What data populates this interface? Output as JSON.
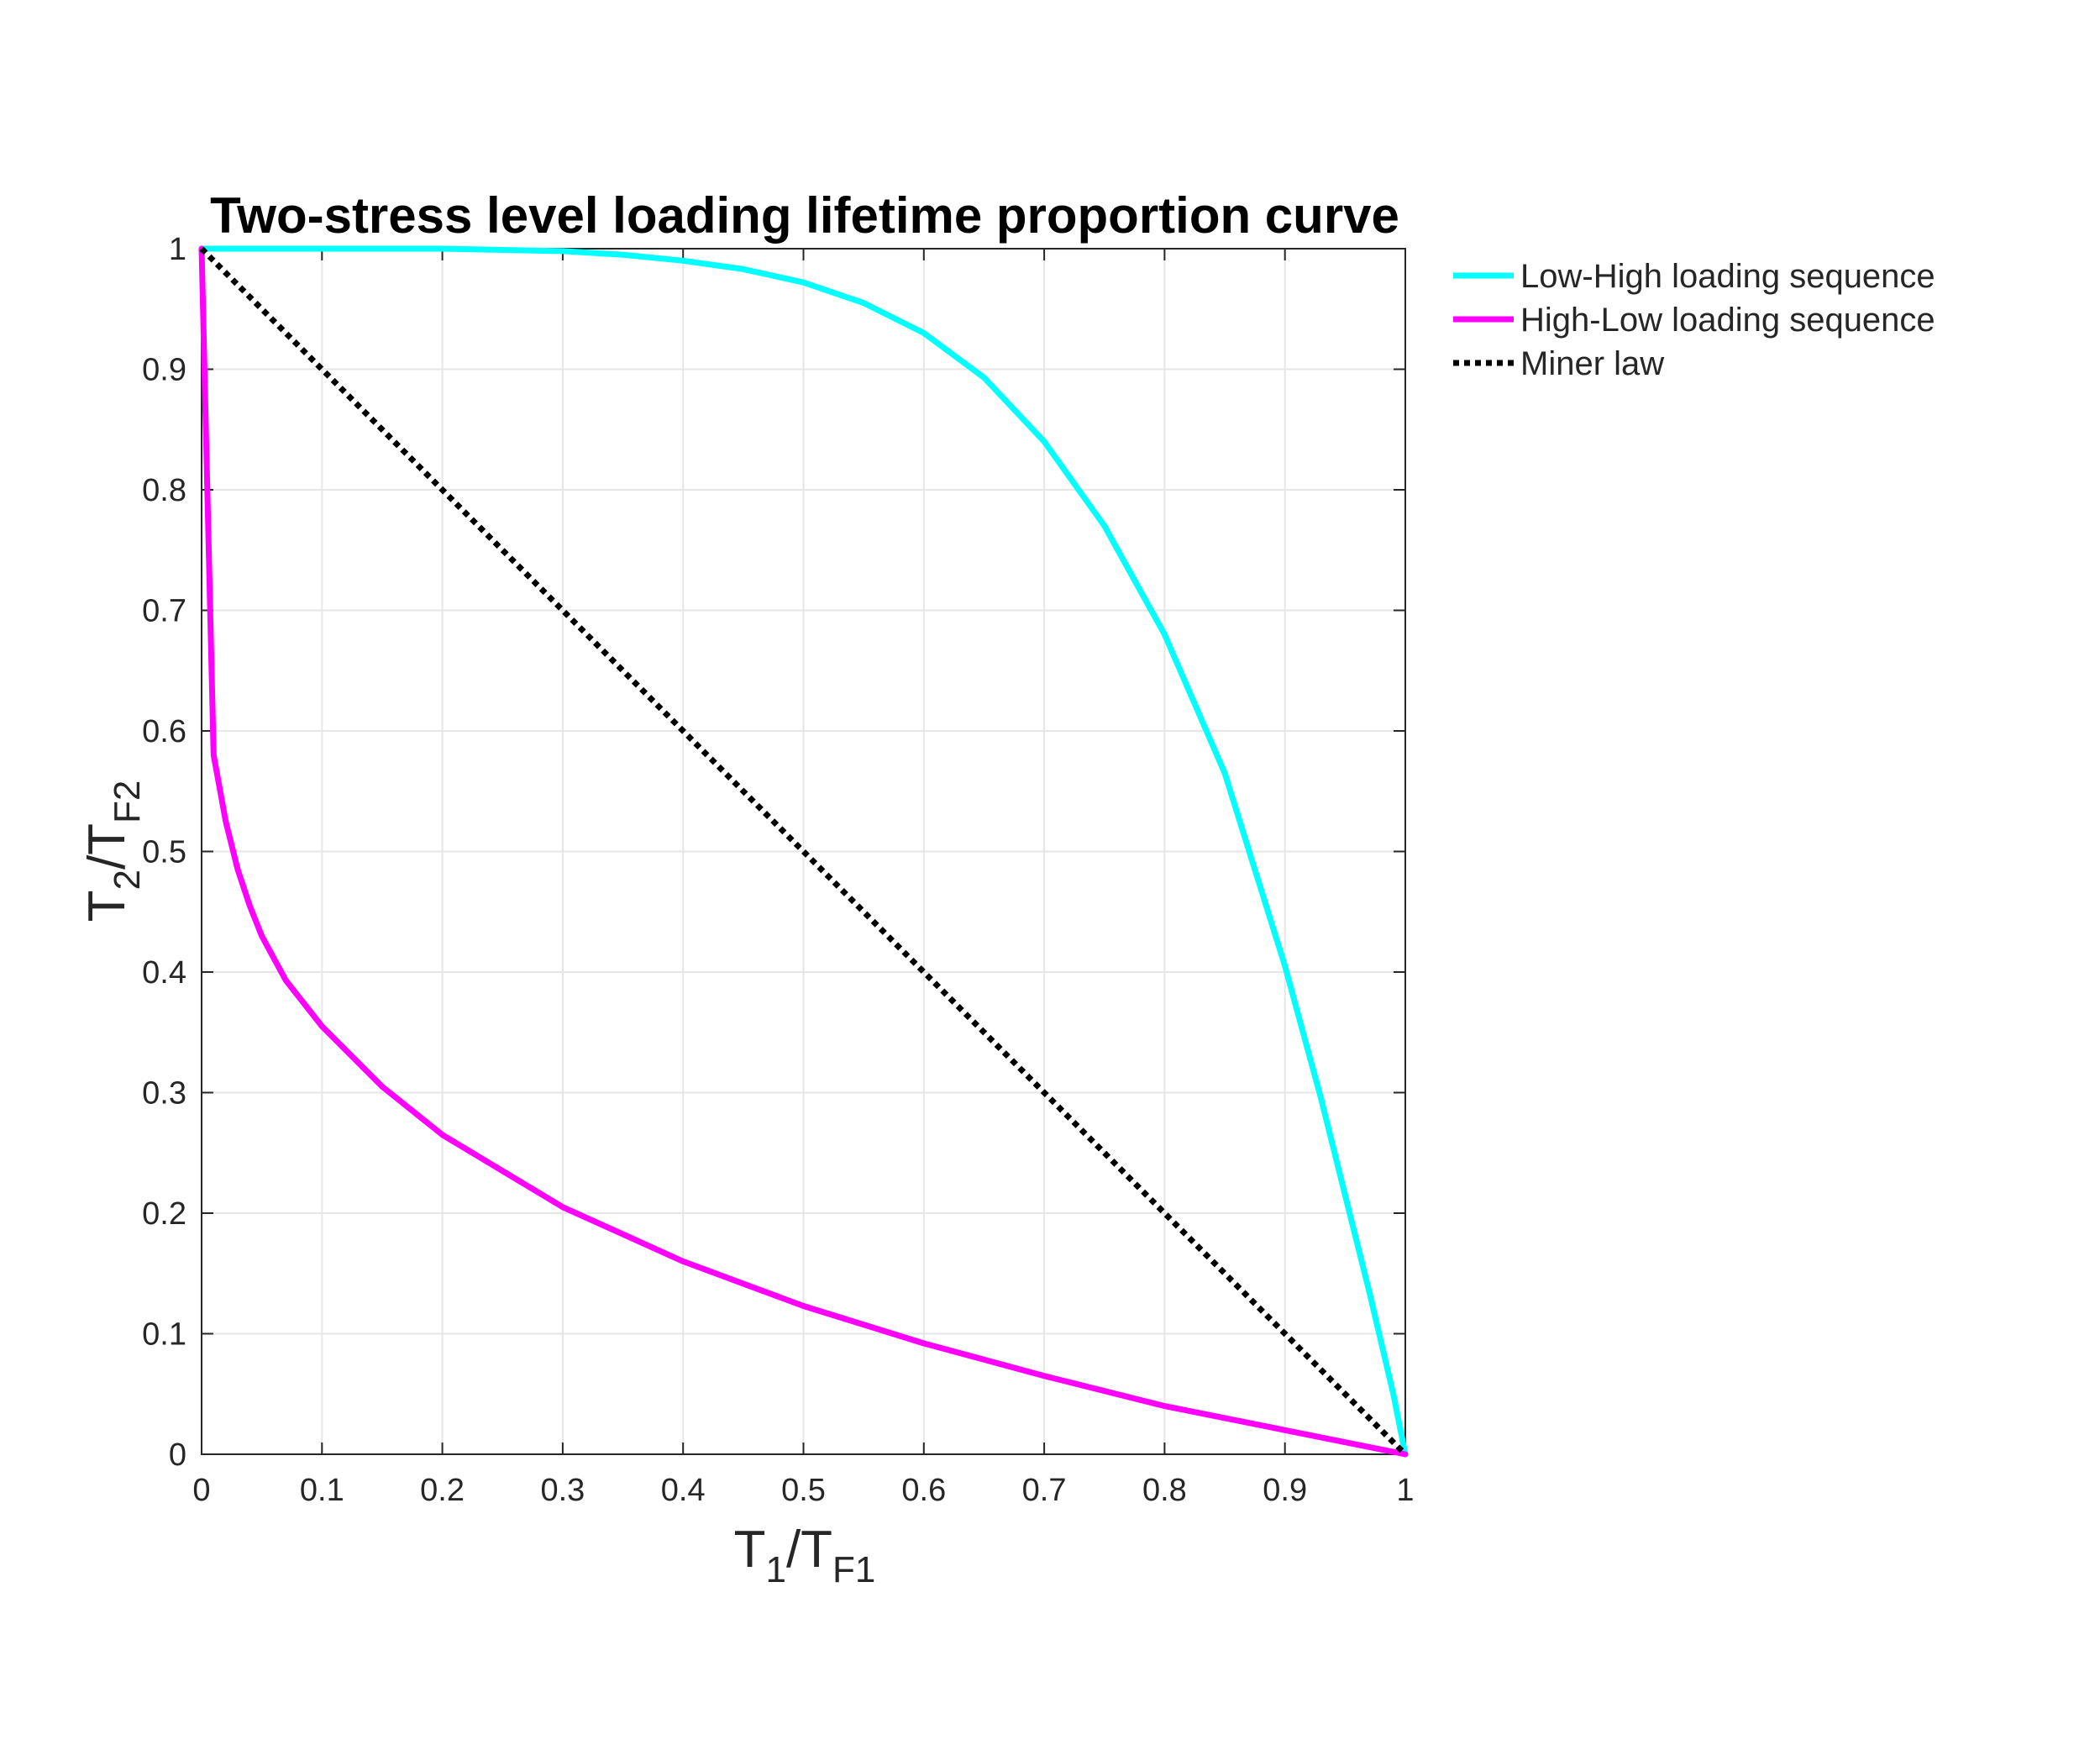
{
  "chart_data": {
    "type": "line",
    "title": "Two-stress level loading lifetime proportion curve",
    "xlabel": {
      "base": "T",
      "sub1": "1",
      "sep": "/T",
      "sub2": "F1"
    },
    "ylabel": {
      "base": "T",
      "sub1": "2",
      "sep": "/T",
      "sub2": "F2"
    },
    "xlim": [
      0,
      1
    ],
    "ylim": [
      0,
      1
    ],
    "xticks": [
      "0",
      "0.1",
      "0.2",
      "0.3",
      "0.4",
      "0.5",
      "0.6",
      "0.7",
      "0.8",
      "0.9",
      "1"
    ],
    "yticks": [
      "0",
      "0.1",
      "0.2",
      "0.3",
      "0.4",
      "0.5",
      "0.6",
      "0.7",
      "0.8",
      "0.9",
      "1"
    ],
    "grid": true,
    "legend_position": "outside-top-right",
    "series": [
      {
        "name": "Low-High loading sequence",
        "color": "#00ffff",
        "style": "solid",
        "x": [
          0,
          0.1,
          0.2,
          0.3,
          0.35,
          0.4,
          0.45,
          0.5,
          0.55,
          0.6,
          0.65,
          0.7,
          0.75,
          0.8,
          0.85,
          0.9,
          0.93,
          0.95,
          0.97,
          0.99,
          1.0
        ],
        "y": [
          1.0,
          1.0,
          1.0,
          0.998,
          0.995,
          0.99,
          0.983,
          0.972,
          0.955,
          0.93,
          0.893,
          0.84,
          0.77,
          0.68,
          0.565,
          0.405,
          0.295,
          0.215,
          0.135,
          0.05,
          0.0
        ]
      },
      {
        "name": "High-Low loading sequence",
        "color": "#ff00ff",
        "style": "solid",
        "x": [
          0,
          0.01,
          0.02,
          0.03,
          0.04,
          0.05,
          0.07,
          0.1,
          0.15,
          0.2,
          0.3,
          0.4,
          0.5,
          0.6,
          0.7,
          0.8,
          0.9,
          1.0
        ],
        "y": [
          1.0,
          0.58,
          0.525,
          0.485,
          0.455,
          0.43,
          0.393,
          0.355,
          0.305,
          0.265,
          0.205,
          0.16,
          0.123,
          0.092,
          0.065,
          0.04,
          0.02,
          0.0
        ]
      },
      {
        "name": "Miner law",
        "color": "#000000",
        "style": "dotted",
        "x": [
          0,
          1
        ],
        "y": [
          1,
          0
        ]
      }
    ]
  }
}
